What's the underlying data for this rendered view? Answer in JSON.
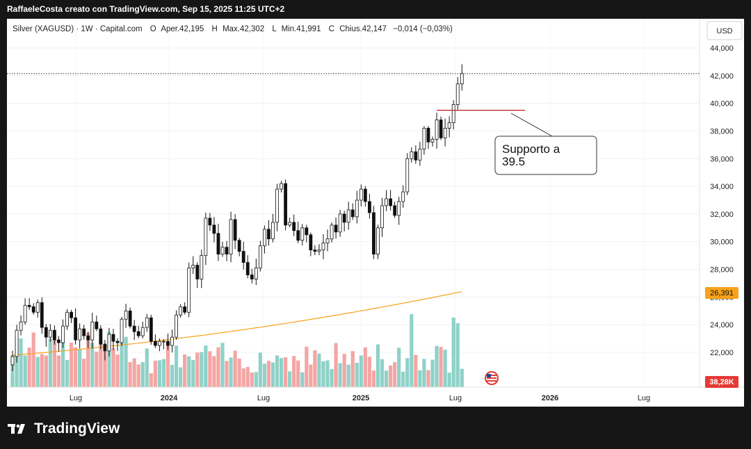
{
  "header": {
    "attribution": "RaffaeleCosta creato con TradingView.com, Sep 15, 2025 11:25 UTC+2"
  },
  "footer": {
    "brand": "TradingView",
    "logo_icon": "tradingview-logo-icon"
  },
  "legend": {
    "symbol": "Silver (XAGUSD) · 1W · Capital.com",
    "o_label": "O",
    "o_value": "Aper.42,195",
    "h_label": "H",
    "h_value": "Max.42,302",
    "l_label": "L",
    "l_value": "Min.41,991",
    "c_label": "C",
    "c_value": "Chius.42,147",
    "change": "−0,014 (−0,03%)"
  },
  "currency_button": "USD",
  "price_badges": {
    "ma": "26,391",
    "volume": "38,28K"
  },
  "annotation": {
    "line1": "Supporto a",
    "line2": "39.5"
  },
  "colors": {
    "up": "#26a69a",
    "down": "#ef5350",
    "up_vol": "#8fd1c8",
    "down_vol": "#f3a6a4",
    "ma": "#f7a21b",
    "support": "#b71c1c",
    "badge_ma": "#f7a21b",
    "badge_vol": "#e53935"
  },
  "chart_data": {
    "type": "candlestick",
    "symbol": "Silver (XAGUSD)",
    "interval": "1W",
    "ylim": [
      20500,
      45000
    ],
    "y_ticks": [
      22000,
      24000,
      26000,
      28000,
      30000,
      32000,
      34000,
      36000,
      38000,
      40000,
      42000,
      44000
    ],
    "y_tick_labels": [
      "22,000",
      "24,000",
      "26,000",
      "28,000",
      "30,000",
      "32,000",
      "34,000",
      "36,000",
      "38,000",
      "40,000",
      "42,000",
      "44,000"
    ],
    "x_tick_labels": [
      "Lug",
      "2024",
      "Lug",
      "2025",
      "Lug",
      "2026",
      "Lug"
    ],
    "last_price": 42147,
    "support_level": 39500,
    "ma_start": 21800,
    "ma_end": 26391,
    "closes": [
      21700,
      23600,
      24200,
      25400,
      25300,
      24900,
      25600,
      23800,
      23100,
      23600,
      22900,
      22700,
      23900,
      24900,
      24500,
      22900,
      23700,
      23200,
      22900,
      24200,
      23700,
      22600,
      22100,
      23300,
      22800,
      22700,
      24400,
      25000,
      23900,
      23500,
      23200,
      23800,
      24500,
      22800,
      22500,
      22800,
      22800,
      22500,
      23100,
      24700,
      25300,
      24900,
      28100,
      28300,
      27300,
      29000,
      31700,
      31200,
      30600,
      29100,
      29600,
      29100,
      31600,
      30100,
      29300,
      28500,
      27600,
      27300,
      28100,
      29700,
      30900,
      30200,
      31400,
      33800,
      34200,
      31200,
      31400,
      30800,
      30100,
      31000,
      30500,
      29400,
      29300,
      29400,
      29900,
      30200,
      31200,
      30700,
      32000,
      31400,
      32300,
      31800,
      33000,
      33800,
      32900,
      32100,
      29100,
      31000,
      32600,
      33100,
      32600,
      31900,
      32900,
      33600,
      36000,
      36500,
      35900,
      36700,
      38200,
      37200,
      37400,
      38800,
      37500,
      38200,
      38600,
      39900,
      41400,
      42147
    ],
    "volume_series_label": "Volume",
    "volume_last": "38,28K"
  }
}
